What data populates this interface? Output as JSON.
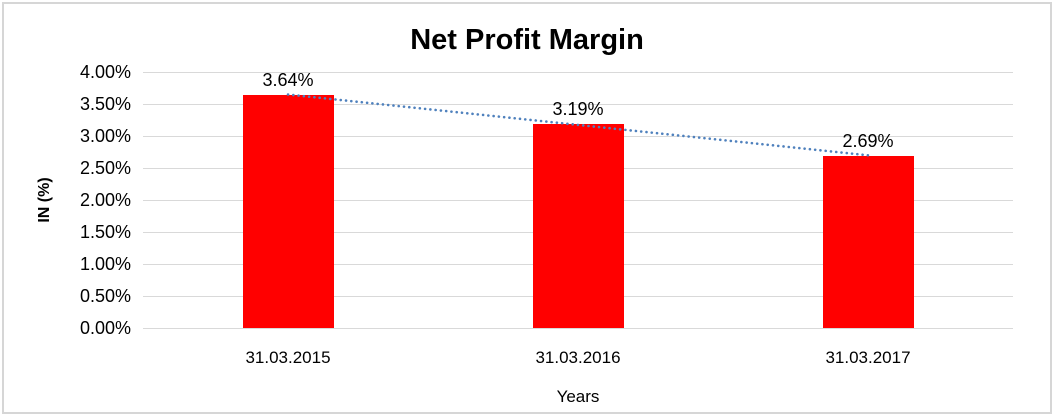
{
  "chart_data": {
    "type": "bar",
    "title": "Net Profit Margin",
    "xlabel": "Years",
    "ylabel": "IN (%)",
    "categories": [
      "31.03.2015",
      "31.03.2016",
      "31.03.2017"
    ],
    "values": [
      3.64,
      3.19,
      2.69
    ],
    "data_labels": [
      "3.64%",
      "3.19%",
      "2.69%"
    ],
    "ylim": [
      0,
      4
    ],
    "yticks": [
      {
        "value": 0.0,
        "label": "0.00%"
      },
      {
        "value": 0.5,
        "label": "0.50%"
      },
      {
        "value": 1.0,
        "label": "1.00%"
      },
      {
        "value": 1.5,
        "label": "1.50%"
      },
      {
        "value": 2.0,
        "label": "2.00%"
      },
      {
        "value": 2.5,
        "label": "2.50%"
      },
      {
        "value": 3.0,
        "label": "3.00%"
      },
      {
        "value": 3.5,
        "label": "3.50%"
      },
      {
        "value": 4.0,
        "label": "4.00%"
      }
    ],
    "grid": true,
    "legend": false,
    "trendline": {
      "type": "linear",
      "style": "dotted"
    },
    "colors": {
      "bar": "#FF0000",
      "trendline": "#4F81BD",
      "gridline": "#D9D9D9",
      "text": "#000000",
      "frame": "#D6D6D6"
    }
  }
}
